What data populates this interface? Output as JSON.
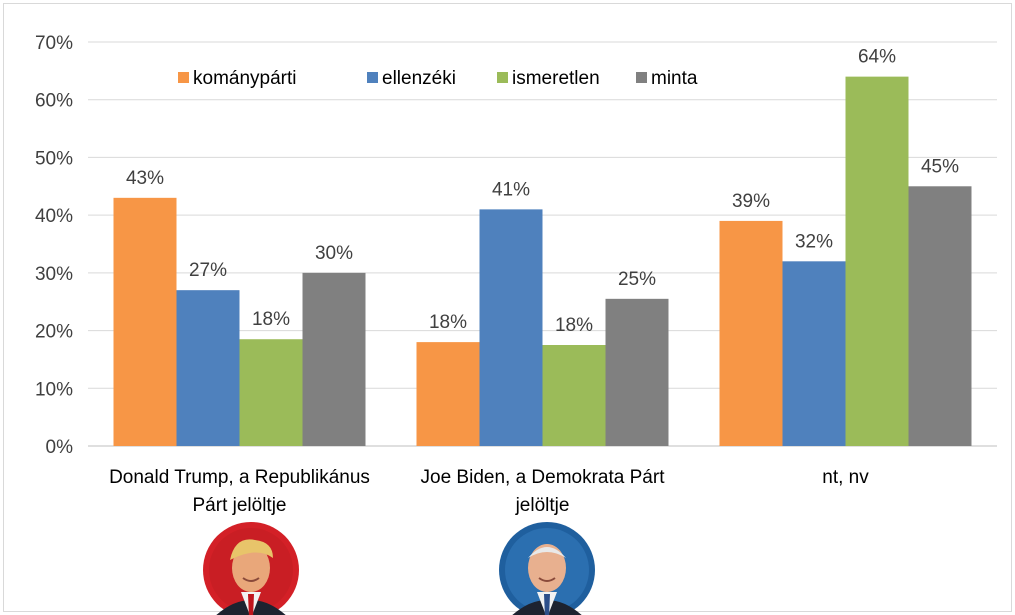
{
  "chart_data": {
    "type": "bar",
    "categories": [
      [
        "Donald Trump, a Republikánus",
        "Párt jelöltje"
      ],
      [
        "Joe Biden, a Demokrata Párt",
        "jelöltje"
      ],
      [
        "nt, nv"
      ]
    ],
    "series": [
      {
        "name": "kománypárti",
        "color": "#f79646",
        "values": [
          43,
          18,
          39
        ],
        "labels": [
          "43%",
          "18%",
          "39%"
        ]
      },
      {
        "name": "ellenzéki",
        "color": "#4f81bd",
        "values": [
          27,
          41,
          32
        ],
        "labels": [
          "27%",
          "41%",
          "32%"
        ]
      },
      {
        "name": "ismeretlen",
        "color": "#9bbb59",
        "values": [
          18.5,
          17.5,
          64
        ],
        "labels": [
          "18%",
          "18%",
          "64%"
        ]
      },
      {
        "name": "minta",
        "color": "#808080",
        "values": [
          30,
          25.5,
          45
        ],
        "labels": [
          "30%",
          "25%",
          "45%"
        ]
      }
    ],
    "yticks": [
      "0%",
      "10%",
      "20%",
      "30%",
      "40%",
      "50%",
      "60%",
      "70%"
    ],
    "ylim": [
      0,
      70
    ],
    "legend_position": "top-left",
    "grid": true,
    "title": "",
    "xlabel": "",
    "ylabel": ""
  },
  "images": [
    {
      "name": "trump-portrait",
      "ring_color": "#d32027",
      "category": 0
    },
    {
      "name": "biden-portrait",
      "ring_color": "#1f5f9e",
      "category": 1
    }
  ]
}
